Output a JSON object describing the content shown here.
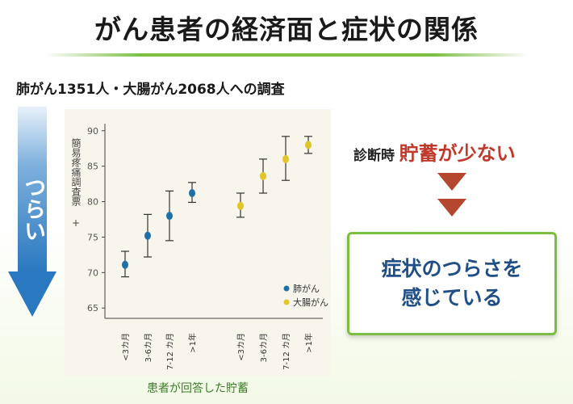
{
  "title": "がん患者の経済面と症状の関係",
  "subtitle": "肺がん1351人・大腸がん2068人への調査",
  "side_arrow": {
    "label": "つらい",
    "color": "#2a78bf"
  },
  "diagnosis": {
    "prefix": "診断時",
    "emphasis": "貯蓄が少ない"
  },
  "result": {
    "line1": "症状のつらさを",
    "line2": "感じている"
  },
  "x_caption": "患者が回答した貯蓄",
  "colors": {
    "lung": "#1f6fa8",
    "colon": "#e2c52a",
    "accent": "#7cbe42",
    "error_bar": "#333333"
  },
  "chart_data": {
    "type": "scatter",
    "title": "",
    "ylabel": "簡易疼痛調査票 +",
    "xlabel": "患者が回答した貯蓄",
    "ylim": [
      64,
      91
    ],
    "yticks": [
      65,
      70,
      75,
      80,
      85,
      90
    ],
    "categories": [
      "<3カ月",
      "3-6カ月",
      "7-12 カ月",
      ">1年"
    ],
    "legend": [
      "肺がん",
      "大腸がん"
    ],
    "series": [
      {
        "name": "肺がん",
        "color": "#1f6fa8",
        "values": [
          71.1,
          75.2,
          78.0,
          81.2
        ],
        "lower": [
          69.4,
          72.2,
          74.5,
          79.9
        ],
        "upper": [
          73.0,
          78.2,
          81.5,
          82.7
        ]
      },
      {
        "name": "大腸がん",
        "color": "#e2c52a",
        "values": [
          79.4,
          83.6,
          86.0,
          88.0
        ],
        "lower": [
          77.8,
          81.2,
          83.0,
          86.8
        ],
        "upper": [
          81.2,
          86.0,
          89.2,
          89.2
        ]
      }
    ]
  }
}
